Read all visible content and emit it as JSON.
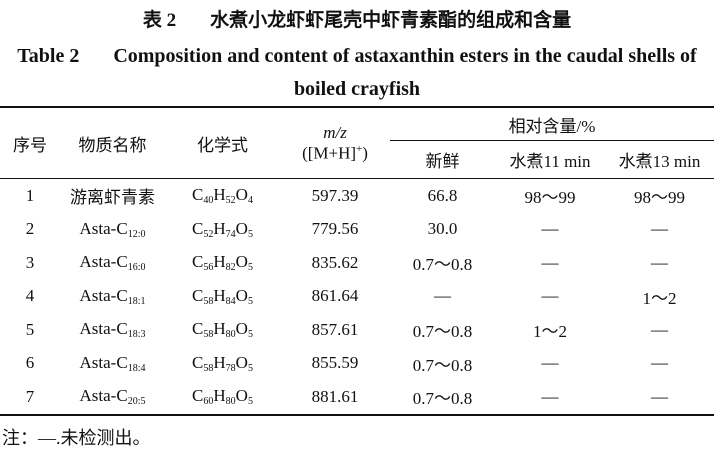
{
  "caption": {
    "label_cn": "表 2",
    "title_cn": "水煮小龙虾虾尾壳中虾青素酯的组成和含量",
    "label_en": "Table 2",
    "title_en": "Composition and content of astaxanthin esters in the caudal shells of boiled crayfish"
  },
  "table": {
    "header": {
      "no": "序号",
      "name": "物质名称",
      "formula": "化学式",
      "mz": [
        "m/z",
        "([M+H]",
        "+",
        ")"
      ],
      "content": "相对含量/%",
      "fresh": "新鲜",
      "boil11": "水煮11 min",
      "boil13": "水煮13 min"
    },
    "rows": [
      {
        "no": "1",
        "name": [
          "游离虾青素"
        ],
        "formula": [
          "C",
          "40",
          "H",
          "52",
          "O",
          "4"
        ],
        "mz": "597.39",
        "fresh": "66.8",
        "boil11": "98～99",
        "boil13": "98～99"
      },
      {
        "no": "2",
        "name": [
          "Asta-C",
          "12:0"
        ],
        "formula": [
          "C",
          "52",
          "H",
          "74",
          "O",
          "5"
        ],
        "mz": "779.56",
        "fresh": "30.0",
        "boil11": "—",
        "boil13": "—"
      },
      {
        "no": "3",
        "name": [
          "Asta-C",
          "16:0"
        ],
        "formula": [
          "C",
          "56",
          "H",
          "82",
          "O",
          "5"
        ],
        "mz": "835.62",
        "fresh": "0.7～0.8",
        "boil11": "—",
        "boil13": "—"
      },
      {
        "no": "4",
        "name": [
          "Asta-C",
          "18:1"
        ],
        "formula": [
          "C",
          "58",
          "H",
          "84",
          "O",
          "5"
        ],
        "mz": "861.64",
        "fresh": "—",
        "boil11": "—",
        "boil13": "1～2"
      },
      {
        "no": "5",
        "name": [
          "Asta-C",
          "18:3"
        ],
        "formula": [
          "C",
          "58",
          "H",
          "80",
          "O",
          "5"
        ],
        "mz": "857.61",
        "fresh": "0.7～0.8",
        "boil11": "1～2",
        "boil13": "—"
      },
      {
        "no": "6",
        "name": [
          "Asta-C",
          "18:4"
        ],
        "formula": [
          "C",
          "58",
          "H",
          "78",
          "O",
          "5"
        ],
        "mz": "855.59",
        "fresh": "0.7～0.8",
        "boil11": "—",
        "boil13": "—"
      },
      {
        "no": "7",
        "name": [
          "Asta-C",
          "20:5"
        ],
        "formula": [
          "C",
          "60",
          "H",
          "80",
          "O",
          "5"
        ],
        "mz": "881.61",
        "fresh": "0.7～0.8",
        "boil11": "—",
        "boil13": "—"
      }
    ]
  },
  "note": "注：—.未检测出。"
}
